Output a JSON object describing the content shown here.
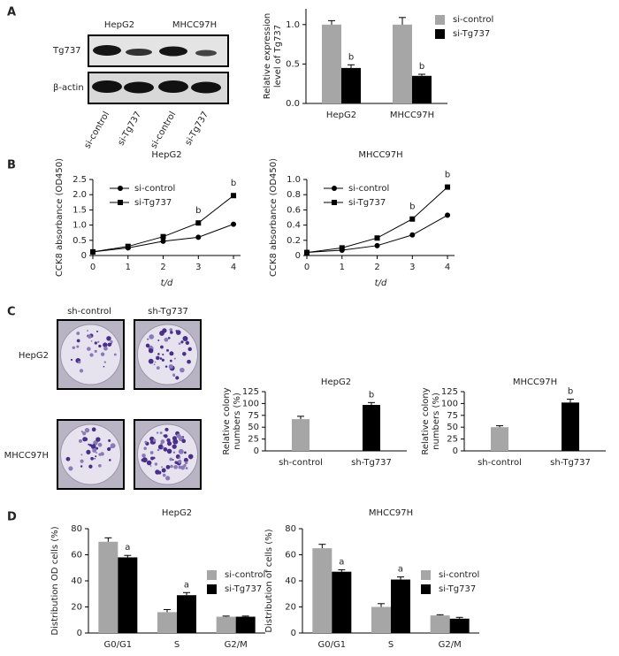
{
  "panel_labels": [
    "A",
    "B",
    "C",
    "D"
  ],
  "blot": {
    "groups": [
      "HepG2",
      "MHCC97H"
    ],
    "rows": [
      "Tg737",
      "β-actin"
    ],
    "lanes": [
      "si-control",
      "si-Tg737",
      "si-control",
      "si-Tg737"
    ]
  },
  "colony": {
    "columns": [
      "sh-control",
      "sh-Tg737"
    ],
    "rows": [
      "HepG2",
      "MHCC97H"
    ]
  },
  "chart_data": [
    {
      "type": "bar",
      "ylabel": [
        "Relative expression",
        "level of Tg737"
      ],
      "categories": [
        "HepG2",
        "MHCC97H"
      ],
      "series": [
        {
          "name": "si-control",
          "color": "#a6a6a6",
          "values": [
            1.0,
            1.0
          ],
          "errors": [
            0.05,
            0.09
          ],
          "annotations": [
            null,
            null
          ]
        },
        {
          "name": "si-Tg737",
          "color": "#000000",
          "values": [
            0.45,
            0.35
          ],
          "errors": [
            0.04,
            0.02
          ],
          "annotations": [
            "b",
            "b"
          ]
        }
      ],
      "ylim": [
        0,
        1.2
      ],
      "yticks": [
        {
          "value": 0,
          "label": "0.0"
        },
        {
          "value": 0.5,
          "label": "0.5"
        },
        {
          "value": 1,
          "label": "1.0"
        }
      ],
      "legend": "upper right"
    },
    {
      "type": "line",
      "title": "HepG2",
      "xlabel": "t/d",
      "ylabel": "CCK8 absorbance (OD450)",
      "x": [
        0,
        1,
        2,
        3,
        4
      ],
      "series": [
        {
          "name": "si-control",
          "color": "#000000",
          "marker": "circle",
          "values": [
            0.12,
            0.25,
            0.47,
            0.6,
            1.03
          ],
          "annotations": [
            null,
            null,
            null,
            null,
            null
          ]
        },
        {
          "name": "si-Tg737",
          "color": "#000000",
          "marker": "square",
          "values": [
            0.12,
            0.3,
            0.62,
            1.07,
            1.97
          ],
          "annotations": [
            null,
            null,
            null,
            "b",
            "b"
          ]
        }
      ],
      "xlim": [
        0,
        4.2
      ],
      "xticks": [
        0,
        1,
        2,
        3,
        4
      ],
      "ylim": [
        0,
        2.5
      ],
      "yticks": [
        0,
        0.5,
        {
          "value": 1,
          "label": "1.0"
        },
        1.5,
        {
          "value": 2,
          "label": "2.0"
        },
        2.5
      ],
      "legend": "upper left"
    },
    {
      "type": "line",
      "title": "MHCC97H",
      "xlabel": "t/d",
      "ylabel": "CCK8 absorbance (OD450)",
      "x": [
        0,
        1,
        2,
        3,
        4
      ],
      "series": [
        {
          "name": "si-control",
          "color": "#000000",
          "marker": "circle",
          "values": [
            0.04,
            0.07,
            0.13,
            0.27,
            0.53
          ],
          "annotations": [
            null,
            null,
            null,
            null,
            null
          ]
        },
        {
          "name": "si-Tg737",
          "color": "#000000",
          "marker": "square",
          "values": [
            0.04,
            0.1,
            0.23,
            0.48,
            0.9
          ],
          "annotations": [
            null,
            null,
            null,
            "b",
            "b"
          ]
        }
      ],
      "xlim": [
        0,
        4.2
      ],
      "xticks": [
        0,
        1,
        2,
        3,
        4
      ],
      "ylim": [
        0,
        1
      ],
      "yticks": [
        0,
        0.2,
        0.4,
        0.6,
        0.8,
        {
          "value": 1,
          "label": "1.0"
        }
      ],
      "legend": "upper left"
    },
    {
      "type": "bar",
      "title": "HepG2",
      "ylabel": [
        "Relative colony",
        "numbers (%)"
      ],
      "categories": [
        "sh-control",
        "sh-Tg737"
      ],
      "values": [
        67,
        97
      ],
      "errors": [
        6,
        5
      ],
      "colors": [
        "#a6a6a6",
        "#000000"
      ],
      "annotations": [
        null,
        "b"
      ],
      "ylim": [
        0,
        125
      ],
      "yticks": [
        0,
        25,
        50,
        75,
        100,
        125
      ]
    },
    {
      "type": "bar",
      "title": "MHCC97H",
      "ylabel": [
        "Relative colony",
        "numbers (%)"
      ],
      "categories": [
        "sh-control",
        "sh-Tg737"
      ],
      "values": [
        50,
        102
      ],
      "errors": [
        3,
        7
      ],
      "colors": [
        "#a6a6a6",
        "#000000"
      ],
      "annotations": [
        null,
        "b"
      ],
      "ylim": [
        0,
        125
      ],
      "yticks": [
        0,
        25,
        50,
        75,
        100,
        125
      ]
    },
    {
      "type": "bar",
      "title": "HepG2",
      "ylabel": "Distribution OD cells (%)",
      "categories": [
        "G0/G1",
        "S",
        "G2/M"
      ],
      "series": [
        {
          "name": "si-control",
          "color": "#a6a6a6",
          "values": [
            70,
            16,
            12.5
          ],
          "errors": [
            3,
            2,
            0.5
          ],
          "annotations": [
            null,
            null,
            null
          ]
        },
        {
          "name": "si-Tg737",
          "color": "#000000",
          "values": [
            58,
            29,
            12.5
          ],
          "errors": [
            1.5,
            2,
            0.5
          ],
          "annotations": [
            "a",
            "a",
            null
          ]
        }
      ],
      "ylim": [
        0,
        80
      ],
      "yticks": [
        0,
        20,
        40,
        60,
        80
      ],
      "legend": "upper right"
    },
    {
      "type": "bar",
      "title": "MHCC97H",
      "ylabel": "Distribution of cells (%)",
      "categories": [
        "G0/G1",
        "S",
        "G2/M"
      ],
      "series": [
        {
          "name": "si-control",
          "color": "#a6a6a6",
          "values": [
            65,
            20,
            13.5
          ],
          "errors": [
            3,
            2.5,
            0.5
          ],
          "annotations": [
            null,
            null,
            null
          ]
        },
        {
          "name": "si-Tg737",
          "color": "#000000",
          "values": [
            47,
            41,
            11
          ],
          "errors": [
            1.5,
            2,
            1
          ],
          "annotations": [
            "a",
            "a",
            null
          ]
        }
      ],
      "ylim": [
        0,
        80
      ],
      "yticks": [
        0,
        20,
        40,
        60,
        80
      ],
      "legend": "upper right"
    }
  ]
}
